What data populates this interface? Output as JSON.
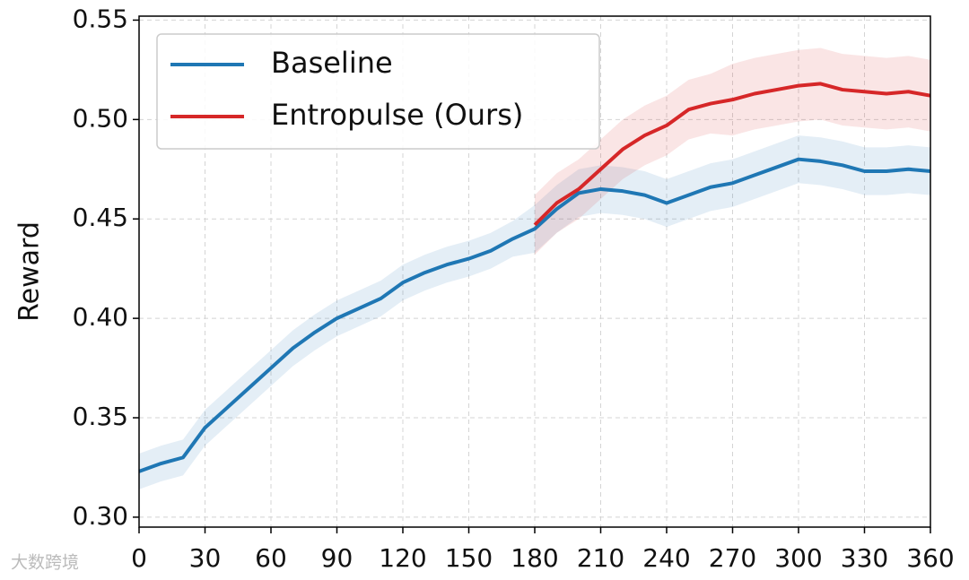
{
  "chart_data": {
    "type": "line",
    "y_label": "Reward",
    "watermark": "大数跨境",
    "x": [
      0,
      10,
      20,
      30,
      40,
      50,
      60,
      70,
      80,
      90,
      100,
      110,
      120,
      130,
      140,
      150,
      160,
      170,
      180,
      190,
      200,
      210,
      220,
      230,
      240,
      250,
      260,
      270,
      280,
      290,
      300,
      310,
      320,
      330,
      340,
      350,
      360
    ],
    "series": [
      {
        "name": "Baseline",
        "color": "#1f77b4",
        "values": [
          0.323,
          0.327,
          0.33,
          0.345,
          0.355,
          0.365,
          0.375,
          0.385,
          0.393,
          0.4,
          0.405,
          0.41,
          0.418,
          0.423,
          0.427,
          0.43,
          0.434,
          0.44,
          0.445,
          0.455,
          0.463,
          0.465,
          0.464,
          0.462,
          0.458,
          0.462,
          0.466,
          0.468,
          0.472,
          0.476,
          0.48,
          0.479,
          0.477,
          0.474,
          0.474,
          0.475,
          0.474
        ],
        "lower": [
          0.314,
          0.318,
          0.321,
          0.336,
          0.346,
          0.356,
          0.366,
          0.376,
          0.384,
          0.391,
          0.396,
          0.401,
          0.409,
          0.414,
          0.418,
          0.421,
          0.425,
          0.431,
          0.433,
          0.443,
          0.451,
          0.453,
          0.452,
          0.45,
          0.446,
          0.45,
          0.454,
          0.456,
          0.46,
          0.464,
          0.468,
          0.467,
          0.465,
          0.462,
          0.462,
          0.463,
          0.462
        ],
        "upper": [
          0.332,
          0.336,
          0.339,
          0.354,
          0.364,
          0.374,
          0.384,
          0.394,
          0.402,
          0.409,
          0.414,
          0.419,
          0.427,
          0.432,
          0.436,
          0.439,
          0.443,
          0.449,
          0.457,
          0.467,
          0.475,
          0.477,
          0.476,
          0.474,
          0.47,
          0.474,
          0.478,
          0.48,
          0.484,
          0.488,
          0.492,
          0.491,
          0.489,
          0.486,
          0.486,
          0.487,
          0.486
        ]
      },
      {
        "name": "Entropulse (Ours)",
        "color": "#d62728",
        "values": [
          null,
          null,
          null,
          null,
          null,
          null,
          null,
          null,
          null,
          null,
          null,
          null,
          null,
          null,
          null,
          null,
          null,
          null,
          0.447,
          0.458,
          0.465,
          0.475,
          0.485,
          0.492,
          0.497,
          0.505,
          0.508,
          0.51,
          0.513,
          0.515,
          0.517,
          0.518,
          0.515,
          0.514,
          0.513,
          0.514,
          0.512
        ],
        "lower": [
          null,
          null,
          null,
          null,
          null,
          null,
          null,
          null,
          null,
          null,
          null,
          null,
          null,
          null,
          null,
          null,
          null,
          null,
          0.432,
          0.443,
          0.45,
          0.46,
          0.47,
          0.477,
          0.482,
          0.49,
          0.493,
          0.492,
          0.495,
          0.497,
          0.499,
          0.5,
          0.497,
          0.496,
          0.495,
          0.496,
          0.494
        ],
        "upper": [
          null,
          null,
          null,
          null,
          null,
          null,
          null,
          null,
          null,
          null,
          null,
          null,
          null,
          null,
          null,
          null,
          null,
          null,
          0.462,
          0.473,
          0.48,
          0.49,
          0.5,
          0.507,
          0.512,
          0.52,
          0.523,
          0.528,
          0.531,
          0.533,
          0.535,
          0.536,
          0.533,
          0.532,
          0.531,
          0.532,
          0.53
        ]
      }
    ],
    "xlim": [
      0,
      360
    ],
    "xticks": [
      0,
      30,
      60,
      90,
      120,
      150,
      180,
      210,
      240,
      270,
      300,
      330,
      360
    ],
    "ylim": [
      0.295,
      0.552
    ],
    "yticks": [
      {
        "value": 0.3,
        "label": "0.30"
      },
      {
        "value": 0.35,
        "label": "0.35"
      },
      {
        "value": 0.4,
        "label": "0.40"
      },
      {
        "value": 0.45,
        "label": "0.45"
      },
      {
        "value": 0.5,
        "label": "0.50"
      },
      {
        "value": 0.55,
        "label": "0.55"
      }
    ],
    "grid": true,
    "legend": "upper left"
  }
}
